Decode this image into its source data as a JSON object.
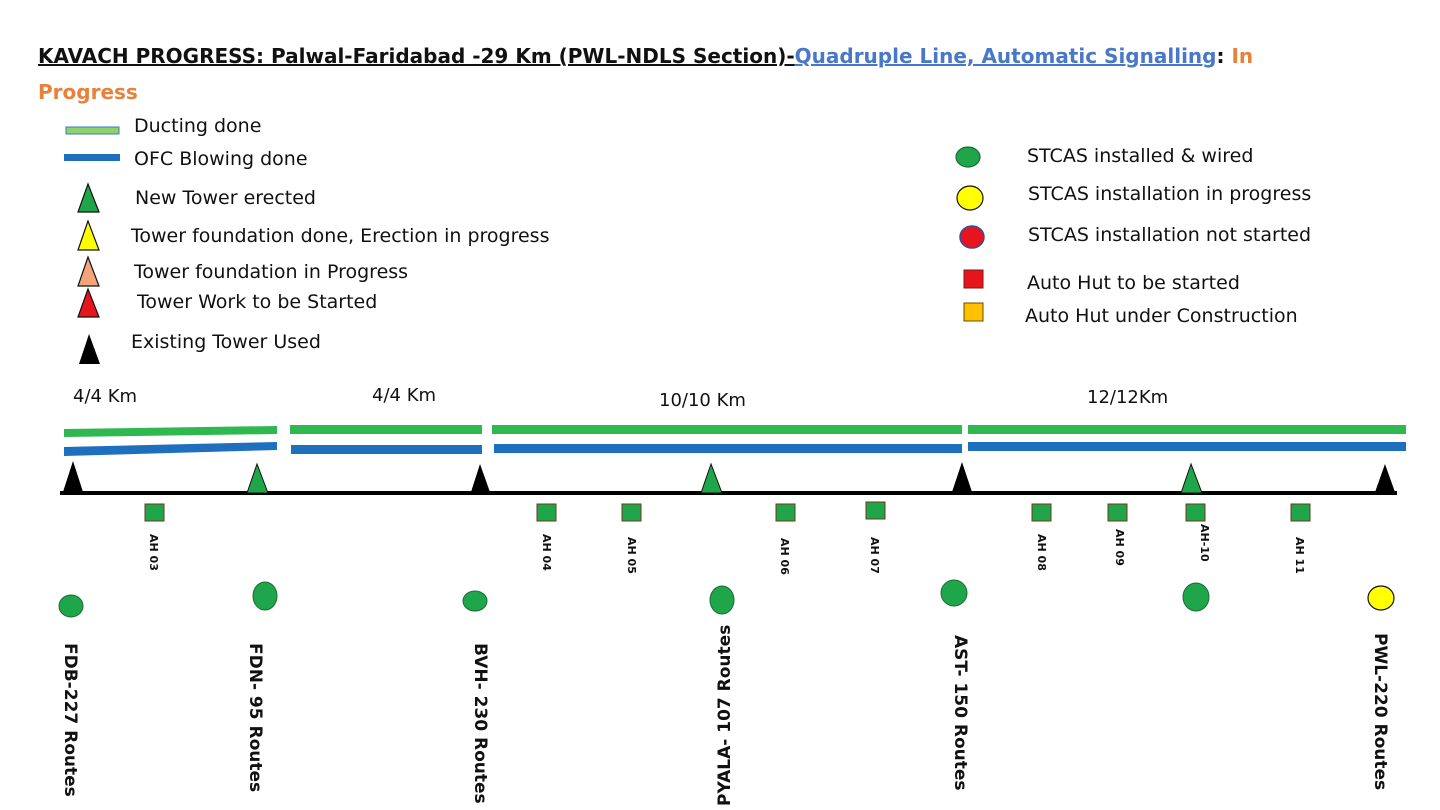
{
  "title": {
    "part1": "KAVACH  PROGRESS: Palwal-Faridabad -29 Km (PWL-NDLS Section)-",
    "part2": "Quadruple Line, Automatic Signalling",
    "part3": ": ",
    "part4": "In Progress"
  },
  "legend": {
    "ducting": "Ducting done",
    "ofc": "OFC Blowing done",
    "new_tower": "New Tower erected",
    "tower_foundation_done": "Tower foundation done, Erection in progress",
    "tower_foundation_progress": "Tower foundation in Progress",
    "tower_to_start": "Tower Work to be Started",
    "existing_tower": "Existing Tower Used",
    "stcas_installed": "STCAS installed & wired",
    "stcas_in_progress": "STCAS installation in progress",
    "stcas_not_started": "STCAS installation not started",
    "auto_hut_to_start": "Auto Hut to be started",
    "auto_hut_construction": "Auto Hut under Construction"
  },
  "segments": [
    "4/4 Km",
    "4/4 Km",
    "10/10 Km",
    "12/12Km"
  ],
  "auto_huts": [
    "AH 03",
    "AH 04",
    "AH 05",
    "AH 06",
    "AH 07",
    "AH 08",
    "AH 09",
    "AH-10",
    "AH 11"
  ],
  "stations": [
    "FDB-227 Routes",
    "FDN- 95 Routes",
    "BVH- 230 Routes",
    "PYALA- 107 Routes",
    "AST- 150 Routes",
    "PWL-220 Routes"
  ],
  "colors": {
    "green": "#1fa64a",
    "ducting_green": "#2eb84f",
    "ofc_blue": "#1f6fbf",
    "yellow": "#ffff00",
    "red": "#e8141c",
    "peach": "#f2a57a",
    "orange_hut": "#ffc000"
  }
}
